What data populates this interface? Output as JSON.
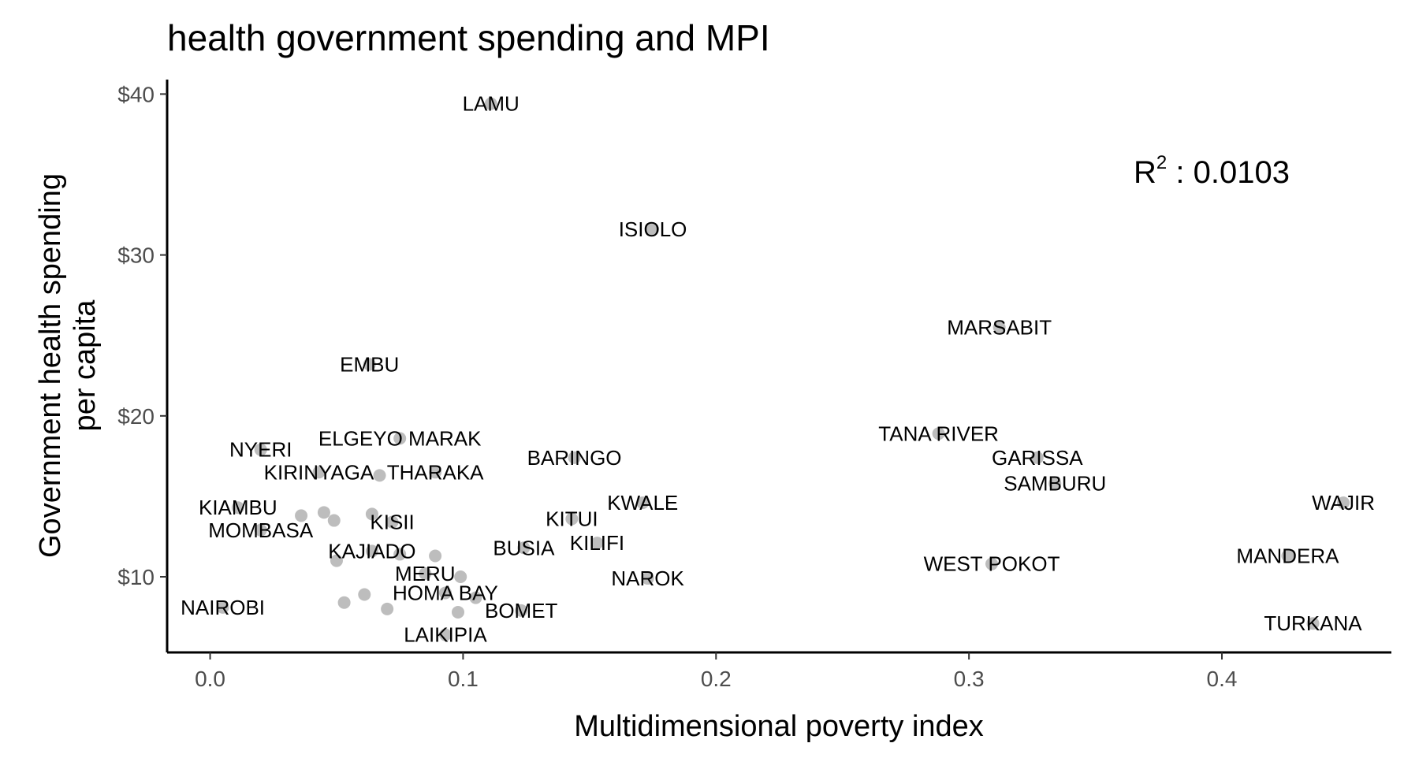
{
  "chart_data": {
    "type": "scatter",
    "title": "health government spending and MPI",
    "xlabel": "Multidimensional poverty index",
    "ylabel_lines": [
      "Government health spending",
      "per capita"
    ],
    "xlim": [
      -0.017,
      0.467
    ],
    "ylim": [
      5.3,
      40.9
    ],
    "x_ticks": [
      0.0,
      0.1,
      0.2,
      0.3,
      0.4
    ],
    "x_tick_labels": [
      "0.0",
      "0.1",
      "0.2",
      "0.3",
      "0.4"
    ],
    "y_ticks": [
      10,
      20,
      30,
      40
    ],
    "y_tick_labels": [
      "$10",
      "$20",
      "$30",
      "$40"
    ],
    "grid": false,
    "point_color": "#bdbdbd",
    "annotation": {
      "base": "R",
      "sup": "2",
      "rest": " : 0.0103"
    },
    "points": [
      {
        "label": "LAMU",
        "x": 0.111,
        "y": 39.4
      },
      {
        "label": "ISIOLO",
        "x": 0.175,
        "y": 31.6
      },
      {
        "label": "MARSABIT",
        "x": 0.312,
        "y": 25.5
      },
      {
        "label": "EMBU",
        "x": 0.063,
        "y": 23.2
      },
      {
        "label": "TANA RIVER",
        "x": 0.288,
        "y": 18.9
      },
      {
        "label": "ELGEYO MARAK",
        "x": 0.075,
        "y": 18.6
      },
      {
        "label": "NYERI",
        "x": 0.02,
        "y": 17.9
      },
      {
        "label": "BARINGO",
        "x": 0.144,
        "y": 17.4
      },
      {
        "label": "GARISSA",
        "x": 0.327,
        "y": 17.4
      },
      {
        "label": "KIRINYAGA",
        "x": 0.043,
        "y": 16.5
      },
      {
        "label": "THARAKA",
        "x": 0.089,
        "y": 16.5
      },
      {
        "label": "",
        "x": 0.067,
        "y": 16.3
      },
      {
        "label": "SAMBURU",
        "x": 0.334,
        "y": 15.8
      },
      {
        "label": "WAJIR",
        "x": 0.448,
        "y": 14.6
      },
      {
        "label": "KWALE",
        "x": 0.171,
        "y": 14.6
      },
      {
        "label": "KIAMBU",
        "x": 0.011,
        "y": 14.3
      },
      {
        "label": "",
        "x": 0.045,
        "y": 14.0
      },
      {
        "label": "",
        "x": 0.064,
        "y": 13.9
      },
      {
        "label": "",
        "x": 0.036,
        "y": 13.8
      },
      {
        "label": "KITUI",
        "x": 0.143,
        "y": 13.6
      },
      {
        "label": "",
        "x": 0.049,
        "y": 13.5
      },
      {
        "label": "KISII",
        "x": 0.072,
        "y": 13.4
      },
      {
        "label": "MOMBASA",
        "x": 0.02,
        "y": 12.9
      },
      {
        "label": "KILIFI",
        "x": 0.153,
        "y": 12.1
      },
      {
        "label": "BUSIA",
        "x": 0.124,
        "y": 11.8
      },
      {
        "label": "KAJIADO",
        "x": 0.064,
        "y": 11.6
      },
      {
        "label": "",
        "x": 0.075,
        "y": 11.4
      },
      {
        "label": "",
        "x": 0.089,
        "y": 11.3
      },
      {
        "label": "MANDERA",
        "x": 0.426,
        "y": 11.3
      },
      {
        "label": "",
        "x": 0.05,
        "y": 11.0
      },
      {
        "label": "WEST POKOT",
        "x": 0.309,
        "y": 10.8
      },
      {
        "label": "MERU",
        "x": 0.085,
        "y": 10.2
      },
      {
        "label": "",
        "x": 0.099,
        "y": 10.0
      },
      {
        "label": "NAROK",
        "x": 0.173,
        "y": 9.9
      },
      {
        "label": "HOMA BAY",
        "x": 0.093,
        "y": 9.0
      },
      {
        "label": "",
        "x": 0.061,
        "y": 8.9
      },
      {
        "label": "",
        "x": 0.105,
        "y": 8.7
      },
      {
        "label": "",
        "x": 0.053,
        "y": 8.4
      },
      {
        "label": "NAIROBI",
        "x": 0.005,
        "y": 8.1
      },
      {
        "label": "",
        "x": 0.07,
        "y": 8.0
      },
      {
        "label": "BOMET",
        "x": 0.123,
        "y": 7.9
      },
      {
        "label": "",
        "x": 0.098,
        "y": 7.8
      },
      {
        "label": "TURKANA",
        "x": 0.436,
        "y": 7.1
      },
      {
        "label": "LAIKIPIA",
        "x": 0.093,
        "y": 6.4
      }
    ]
  }
}
